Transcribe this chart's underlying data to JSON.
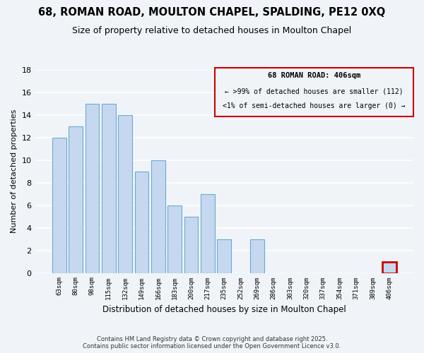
{
  "title": "68, ROMAN ROAD, MOULTON CHAPEL, SPALDING, PE12 0XQ",
  "subtitle": "Size of property relative to detached houses in Moulton Chapel",
  "xlabel": "Distribution of detached houses by size in Moulton Chapel",
  "ylabel": "Number of detached properties",
  "categories": [
    "63sqm",
    "80sqm",
    "98sqm",
    "115sqm",
    "132sqm",
    "149sqm",
    "166sqm",
    "183sqm",
    "200sqm",
    "217sqm",
    "235sqm",
    "252sqm",
    "269sqm",
    "286sqm",
    "303sqm",
    "320sqm",
    "337sqm",
    "354sqm",
    "371sqm",
    "389sqm",
    "406sqm"
  ],
  "values": [
    12,
    13,
    15,
    15,
    14,
    9,
    10,
    6,
    5,
    7,
    3,
    0,
    3,
    0,
    0,
    0,
    0,
    0,
    0,
    0,
    1
  ],
  "bar_color": "#c5d8f0",
  "bar_edge_color": "#6aaad4",
  "highlight_index": 20,
  "highlight_bar_edge_color": "#cc0000",
  "ylim": [
    0,
    18
  ],
  "yticks": [
    0,
    2,
    4,
    6,
    8,
    10,
    12,
    14,
    16,
    18
  ],
  "annotation_title": "68 ROMAN ROAD: 406sqm",
  "annotation_line1": "← >99% of detached houses are smaller (112)",
  "annotation_line2": "<1% of semi-detached houses are larger (0) →",
  "annotation_box_edge_color": "#cc0000",
  "footer_line1": "Contains HM Land Registry data © Crown copyright and database right 2025.",
  "footer_line2": "Contains public sector information licensed under the Open Government Licence v3.0.",
  "background_color": "#f0f4f8",
  "plot_bg_color": "#f0f4f8",
  "grid_color": "#d0d8e0",
  "title_fontsize": 10.5,
  "subtitle_fontsize": 9
}
